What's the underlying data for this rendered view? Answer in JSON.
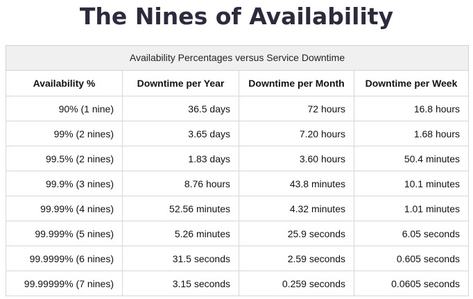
{
  "title": "The Nines of Availability",
  "table": {
    "caption": "Availability Percentages versus Service Downtime",
    "headers": [
      "Availability %",
      "Downtime per Year",
      "Downtime per Month",
      "Downtime per Week"
    ],
    "rows": [
      [
        "90% (1 nine)",
        "36.5 days",
        "72 hours",
        "16.8 hours"
      ],
      [
        "99% (2 nines)",
        "3.65 days",
        "7.20 hours",
        "1.68 hours"
      ],
      [
        "99.5% (2 nines)",
        "1.83 days",
        "3.60 hours",
        "50.4 minutes"
      ],
      [
        "99.9% (3 nines)",
        "8.76 hours",
        "43.8 minutes",
        "10.1 minutes"
      ],
      [
        "99.99% (4 nines)",
        "52.56 minutes",
        "4.32 minutes",
        "1.01 minutes"
      ],
      [
        "99.999% (5 nines)",
        "5.26 minutes",
        "25.9 seconds",
        "6.05 seconds"
      ],
      [
        "99.9999% (6 nines)",
        "31.5 seconds",
        "2.59 seconds",
        "0.605 seconds"
      ],
      [
        "99.99999% (7 nines)",
        "3.15 seconds",
        "0.259 seconds",
        "0.0605 seconds"
      ]
    ]
  }
}
